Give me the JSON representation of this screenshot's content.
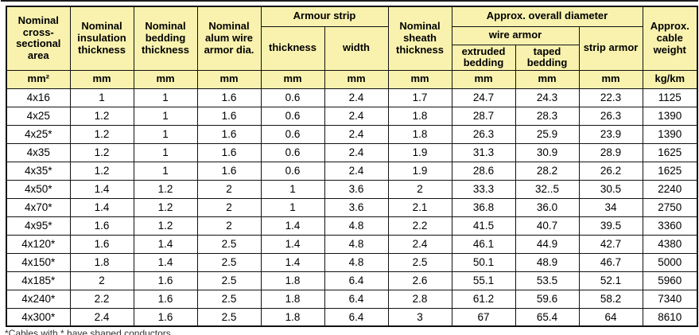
{
  "table": {
    "header": {
      "col_area": "Nominal cross-sectional area",
      "col_insulation": "Nominal insulation thickness",
      "col_bedding": "Nominal bedding thickness",
      "col_alum_wire": "Nominal alum wire armor dia.",
      "group_armour_strip": "Armour strip",
      "col_strip_thickness": "thickness",
      "col_strip_width": "width",
      "col_sheath": "Nominal sheath thickness",
      "group_overall_diameter": "Approx. overall diameter",
      "group_wire_armor": "wire armor",
      "col_extruded_bedding": "extruded bedding",
      "col_taped_bedding": "taped bedding",
      "col_strip_armor": "strip armor",
      "col_weight": "Approx. cable weight"
    },
    "units": [
      "mm²",
      "mm",
      "mm",
      "mm",
      "mm",
      "mm",
      "mm",
      "mm",
      "mm",
      "mm",
      "kg/km"
    ],
    "rows": [
      [
        "4x16",
        "1",
        "1",
        "1.6",
        "0.6",
        "2.4",
        "1.7",
        "24.7",
        "24.3",
        "22.3",
        "1125"
      ],
      [
        "4x25",
        "1.2",
        "1",
        "1.6",
        "0.6",
        "2.4",
        "1.8",
        "28.7",
        "28.3",
        "26.3",
        "1390"
      ],
      [
        "4x25*",
        "1.2",
        "1",
        "1.6",
        "0.6",
        "2.4",
        "1.8",
        "26.3",
        "25.9",
        "23.9",
        "1390"
      ],
      [
        "4x35",
        "1.2",
        "1",
        "1.6",
        "0.6",
        "2.4",
        "1.9",
        "31.3",
        "30.9",
        "28.9",
        "1625"
      ],
      [
        "4x35*",
        "1.2",
        "1",
        "1.6",
        "0.6",
        "2.4",
        "1.9",
        "28.6",
        "28.2",
        "26.2",
        "1625"
      ],
      [
        "4x50*",
        "1.4",
        "1.2",
        "2",
        "1",
        "3.6",
        "2",
        "33.3",
        "32..5",
        "30.5",
        "2240"
      ],
      [
        "4x70*",
        "1.4",
        "1.2",
        "2",
        "1",
        "3.6",
        "2.1",
        "36.8",
        "36.0",
        "34",
        "2750"
      ],
      [
        "4x95*",
        "1.6",
        "1.2",
        "2",
        "1.4",
        "4.8",
        "2.2",
        "41.5",
        "40.7",
        "39.5",
        "3360"
      ],
      [
        "4x120*",
        "1.6",
        "1.4",
        "2.5",
        "1.4",
        "4.8",
        "2.4",
        "46.1",
        "44.9",
        "42.7",
        "4380"
      ],
      [
        "4x150*",
        "1.8",
        "1.4",
        "2.5",
        "1.4",
        "4.8",
        "2.5",
        "50.1",
        "48.9",
        "46.7",
        "5000"
      ],
      [
        "4x185*",
        "2",
        "1.6",
        "2.5",
        "1.8",
        "6.4",
        "2.6",
        "55.1",
        "53.5",
        "52.1",
        "5960"
      ],
      [
        "4x240*",
        "2.2",
        "1.6",
        "2.5",
        "1.8",
        "6.4",
        "2.8",
        "61.2",
        "59.6",
        "58.2",
        "7340"
      ],
      [
        "4x300*",
        "2.4",
        "1.6",
        "2.5",
        "1.8",
        "6.4",
        "3",
        "67",
        "65.4",
        "64",
        "8610"
      ]
    ]
  },
  "footnote": "*Cables with * have shaped conductors"
}
